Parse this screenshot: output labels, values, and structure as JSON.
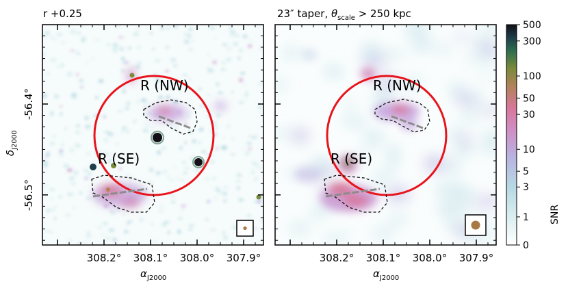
{
  "panels": [
    {
      "title": "r +0.25",
      "label_nw": "R (NW)",
      "label_se": "R (SE)"
    },
    {
      "title_prefix": "23″ taper, ",
      "title_theta": "θ",
      "title_sub": "scale",
      "title_suffix": " > 250 kpc",
      "label_nw": "R (NW)",
      "label_se": "R (SE)"
    }
  ],
  "axes": {
    "x_ticks": [
      "308.2°",
      "308.1°",
      "308.0°",
      "307.9°"
    ],
    "x_label_main": "α",
    "x_label_sub": "J2000",
    "y_ticks": [
      "-56.4°",
      "-56.5°"
    ],
    "y_label_main": "δ",
    "y_label_sub": "J2000"
  },
  "colorbar": {
    "label": "SNR",
    "ticks": [
      {
        "label": "500",
        "value": 500
      },
      {
        "label": "300",
        "value": 300
      },
      {
        "label": "100",
        "value": 100
      },
      {
        "label": "50",
        "value": 50
      },
      {
        "label": "30",
        "value": 30
      },
      {
        "label": "10",
        "value": 10
      },
      {
        "label": "5",
        "value": 5
      },
      {
        "label": "3",
        "value": 3
      },
      {
        "label": "1",
        "value": 1
      },
      {
        "label": "0",
        "value": 0
      }
    ]
  },
  "colors": {
    "circle": "#e8141c",
    "dashed_contour": "#111111",
    "grey_line": "#8c8c8c",
    "beam": "#a87845"
  }
}
